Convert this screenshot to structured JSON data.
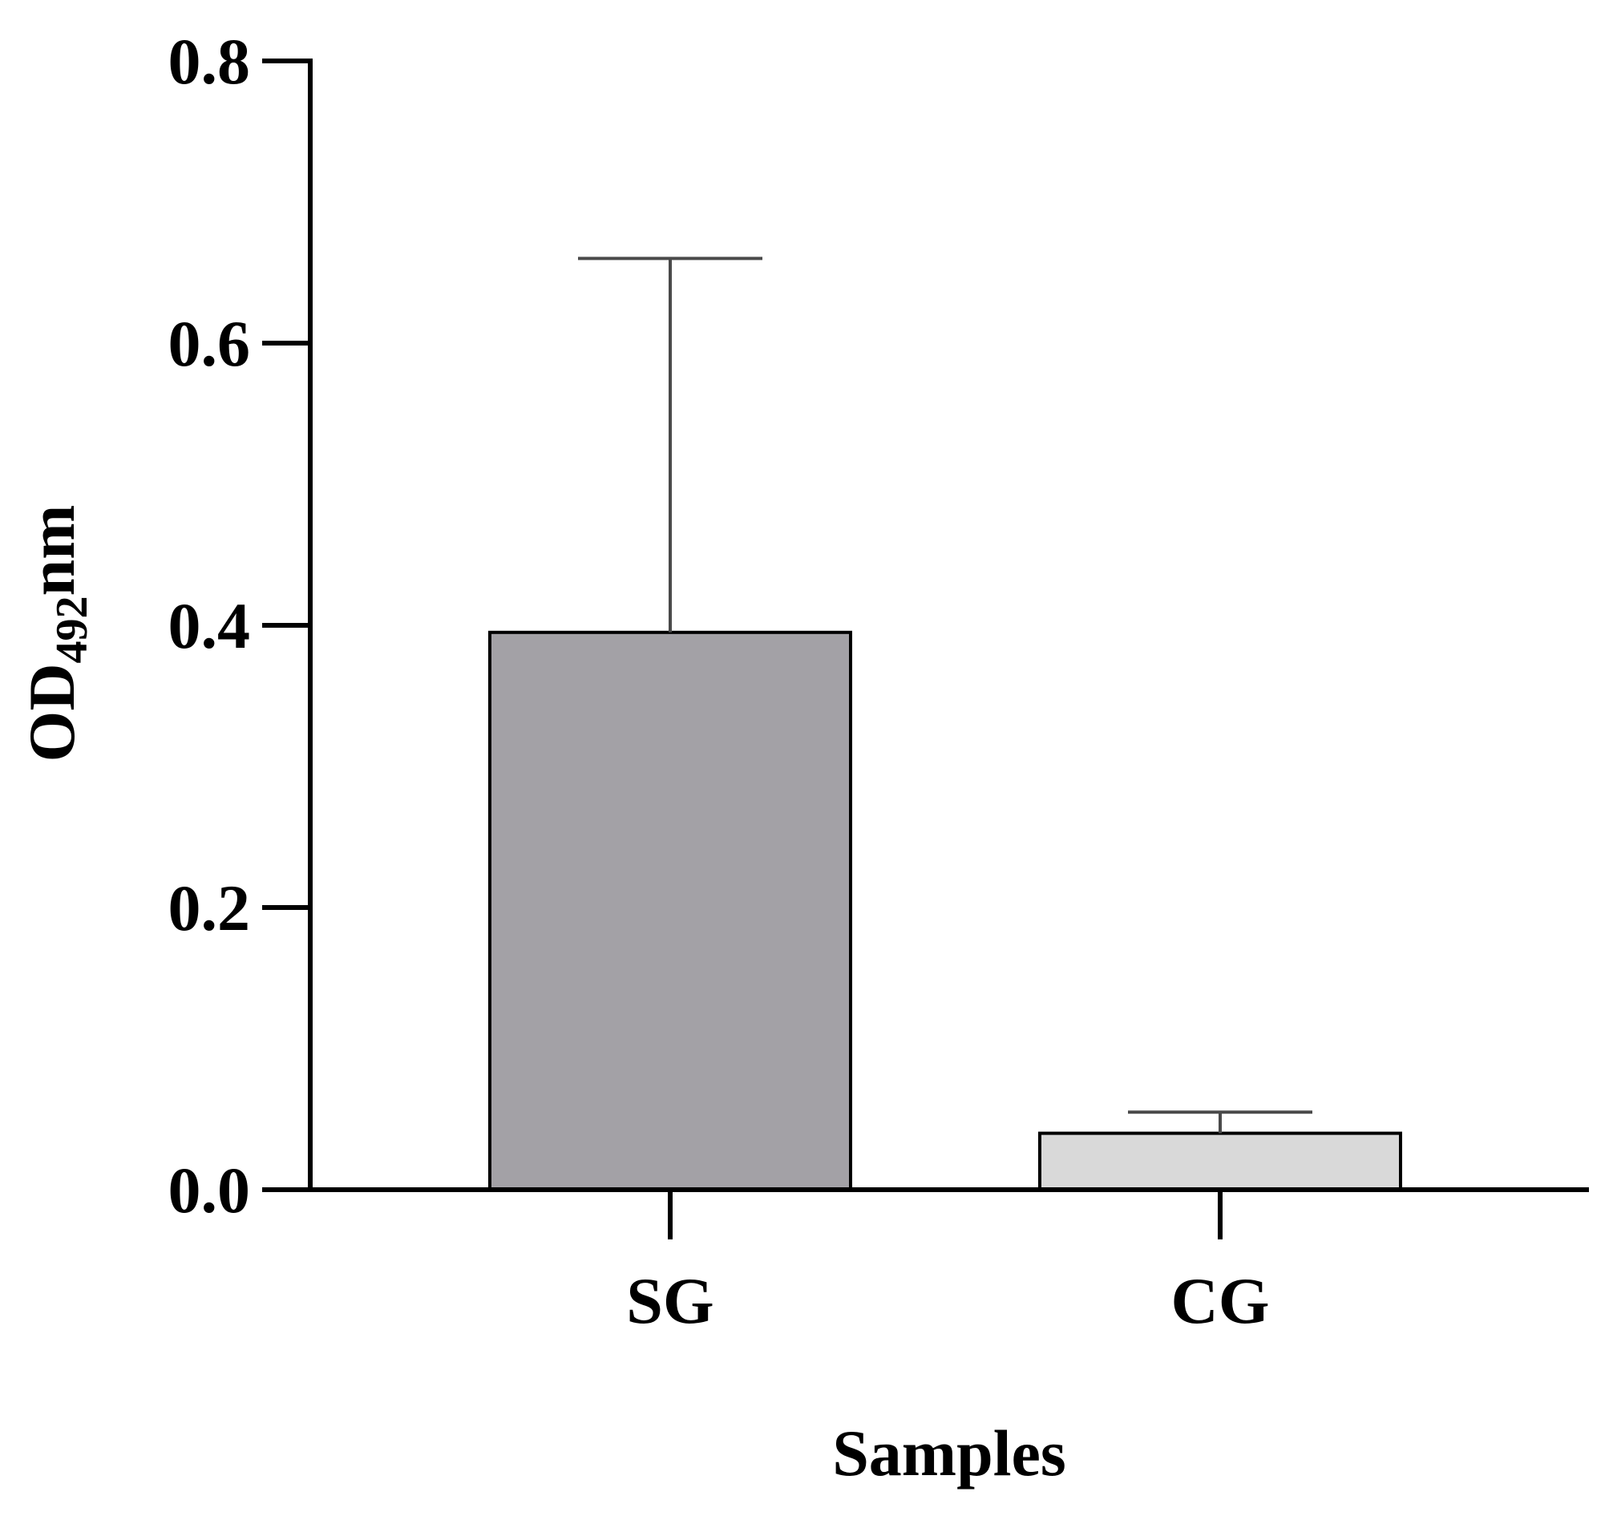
{
  "chart_data": {
    "type": "bar",
    "categories": [
      "SG",
      "CG"
    ],
    "values": [
      0.395,
      0.04
    ],
    "error_upper": [
      0.66,
      0.055
    ],
    "colors": [
      "#a3a1a6",
      "#d9d9d9"
    ],
    "xlabel": "Samples",
    "ylabel": {
      "main": "OD",
      "subscript": "492",
      "suffix": "nm"
    },
    "ylim": [
      0,
      0.8
    ],
    "yticks": [
      "0.0",
      "0.2",
      "0.4",
      "0.6",
      "0.8"
    ],
    "grid": false,
    "legend": "none"
  }
}
